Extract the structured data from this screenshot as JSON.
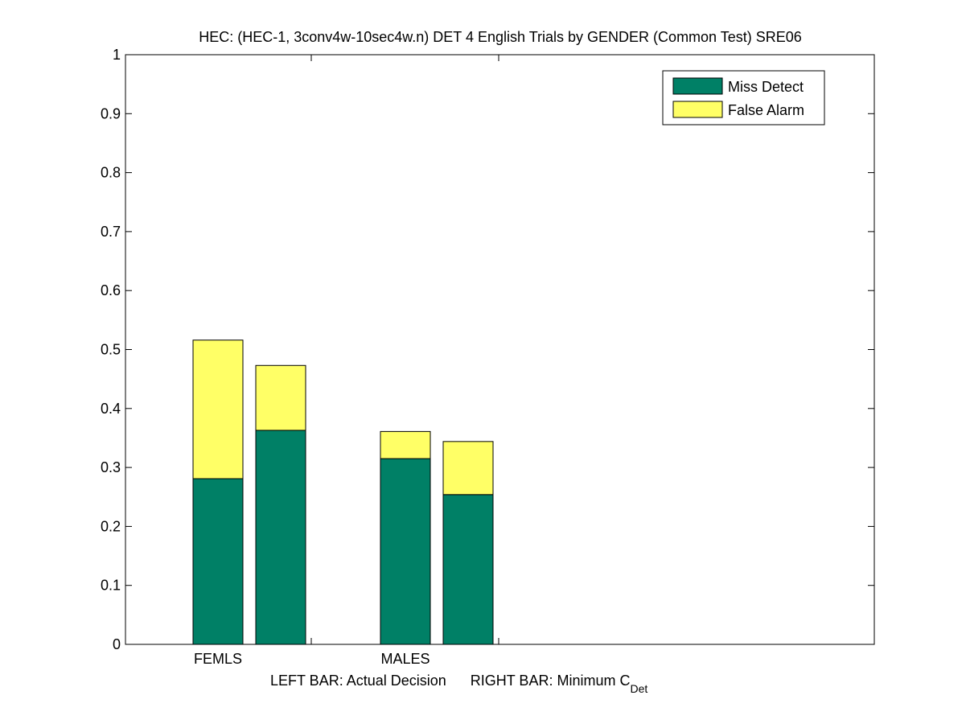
{
  "chart_data": {
    "type": "bar",
    "stacked": true,
    "title": "HEC: (HEC-1, 3conv4w-10sec4w.n) DET 4 English Trials by GENDER (Common Test) SRE06",
    "xlabel_left": "LEFT BAR: Actual Decision",
    "xlabel_right_prefix": "RIGHT BAR: Minimum C",
    "xlabel_right_subscript": "Det",
    "ylim": [
      0,
      1
    ],
    "yticks": [
      "0",
      "0.1",
      "0.2",
      "0.3",
      "0.4",
      "0.5",
      "0.6",
      "0.7",
      "0.8",
      "0.9",
      "1"
    ],
    "categories": [
      "FEMLS",
      "MALES"
    ],
    "legend_position": "top-right",
    "grid": false,
    "series": [
      {
        "name": "Miss Detect",
        "color": "#008066",
        "values": [
          [
            0.281,
            0.363
          ],
          [
            0.315,
            0.254
          ]
        ]
      },
      {
        "name": "False Alarm",
        "color": "#ffff66",
        "values": [
          [
            0.235,
            0.11
          ],
          [
            0.046,
            0.09
          ]
        ]
      }
    ],
    "bar_roles": [
      "Actual Decision",
      "Minimum C_Det"
    ]
  }
}
